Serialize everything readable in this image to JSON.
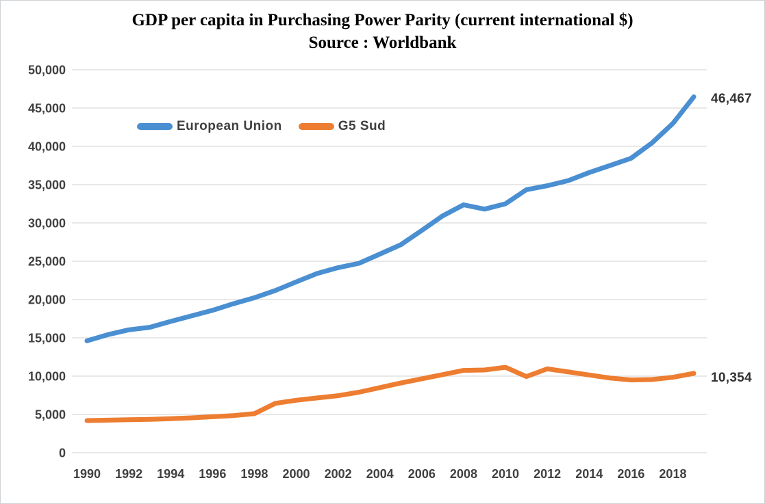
{
  "title": {
    "line1": "GDP per capita in Purchasing Power Parity (current international $)",
    "line2": "Source : Worldbank"
  },
  "colors": {
    "series_blue": "#4A8FD1",
    "series_orange": "#ED7D31",
    "grid": "#D9D9D9",
    "axis_text": "#404040",
    "data_label_text": "#333333"
  },
  "chart_data": {
    "type": "line",
    "title": "GDP per capita in Purchasing Power Parity (current international $)",
    "subtitle": "Source : Worldbank",
    "xlabel": "",
    "ylabel": "",
    "ylim": [
      0,
      50000
    ],
    "grid": "horizontal",
    "legend_position": "top-left-inside",
    "x": [
      1990,
      1991,
      1992,
      1993,
      1994,
      1995,
      1996,
      1997,
      1998,
      1999,
      2000,
      2001,
      2002,
      2003,
      2004,
      2005,
      2006,
      2007,
      2008,
      2009,
      2010,
      2011,
      2012,
      2013,
      2014,
      2015,
      2016,
      2017,
      2018,
      2019
    ],
    "x_tick_labels": [
      "1990",
      "1992",
      "1994",
      "1996",
      "1998",
      "2000",
      "2002",
      "2004",
      "2006",
      "2008",
      "2010",
      "2012",
      "2014",
      "2016",
      "2018"
    ],
    "y_ticks": [
      {
        "value": 0,
        "label": "0"
      },
      {
        "value": 5000,
        "label": "5,000"
      },
      {
        "value": 10000,
        "label": "10,000"
      },
      {
        "value": 15000,
        "label": "15,000"
      },
      {
        "value": 20000,
        "label": "20,000"
      },
      {
        "value": 25000,
        "label": "25,000"
      },
      {
        "value": 30000,
        "label": "30,000"
      },
      {
        "value": 35000,
        "label": "35,000"
      },
      {
        "value": 40000,
        "label": "40,000"
      },
      {
        "value": 45000,
        "label": "45,000"
      },
      {
        "value": 50000,
        "label": "50,000"
      }
    ],
    "series": [
      {
        "name": "European Union",
        "color": "#4A8FD1",
        "end_label": "46,467",
        "values": [
          14607,
          15420,
          16042,
          16375,
          17145,
          17867,
          18591,
          19458,
          20233,
          21179,
          22305,
          23404,
          24162,
          24734,
          25937,
          27163,
          29020,
          30927,
          32370,
          31808,
          32500,
          34343,
          34858,
          35530,
          36577,
          37496,
          38439,
          40438,
          42983,
          46467
        ]
      },
      {
        "name": "G5 Sud",
        "color": "#ED7D31",
        "end_label": "10,354",
        "values": [
          4200,
          4250,
          4300,
          4350,
          4450,
          4550,
          4700,
          4850,
          5100,
          6450,
          6850,
          7150,
          7450,
          7900,
          8500,
          9100,
          9650,
          10200,
          10750,
          10800,
          11150,
          9950,
          10950,
          10550,
          10150,
          9750,
          9500,
          9550,
          9850,
          10354
        ]
      }
    ]
  }
}
